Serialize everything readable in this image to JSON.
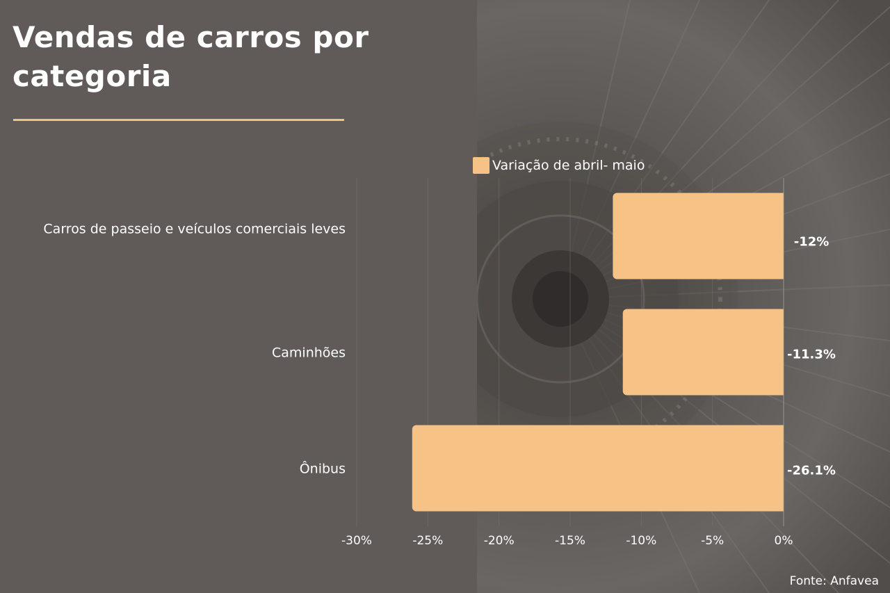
{
  "title": "Vendas de carros por categoria",
  "legend": {
    "label": "Variação de abril- maio"
  },
  "source": "Fonte: Anfavea",
  "colors": {
    "bar": "#f7c285",
    "divider": "#f0c089",
    "background": "#605b58"
  },
  "chart_data": {
    "type": "bar",
    "orientation": "horizontal",
    "categories": [
      "Carros de passeio e veículos comerciais leves",
      "Caminhões",
      "Ônibus"
    ],
    "series": [
      {
        "name": "Variação de abril- maio",
        "values": [
          -12,
          -11.3,
          -26.1
        ]
      }
    ],
    "value_labels": [
      "-12%",
      "-11.3%",
      "-26.1%"
    ],
    "xlim": [
      -30,
      0
    ],
    "x_ticks": [
      -30,
      -25,
      -20,
      -15,
      -10,
      -5,
      0
    ],
    "x_tick_labels": [
      "-30%",
      "-25%",
      "-20%",
      "-15%",
      "-10%",
      "-5%",
      "0%"
    ],
    "legend_position": "top",
    "grid": true
  }
}
